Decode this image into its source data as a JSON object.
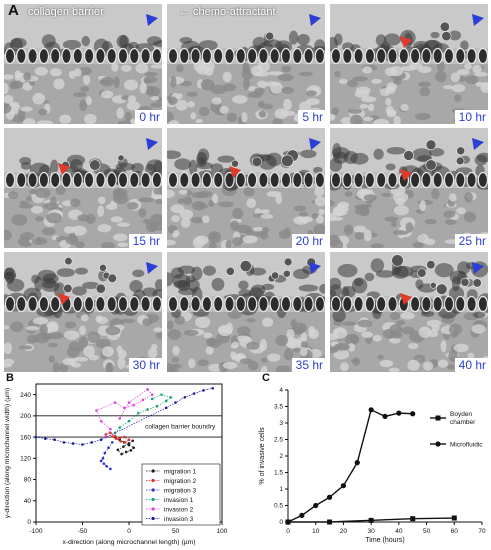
{
  "panel_a": {
    "label": "A",
    "annotations": {
      "collagen_barrier": "collagen barrier",
      "chemo_attractant": "chemo-attractant"
    },
    "frames": [
      {
        "time": "0 hr",
        "red_arrow": false
      },
      {
        "time": "5 hr",
        "red_arrow": false
      },
      {
        "time": "10 hr",
        "red_arrow": true
      },
      {
        "time": "15 hr",
        "red_arrow": true
      },
      {
        "time": "20 hr",
        "red_arrow": true
      },
      {
        "time": "25 hr",
        "red_arrow": true
      },
      {
        "time": "30 hr",
        "red_arrow": true
      },
      {
        "time": "35 hr",
        "red_arrow": false
      },
      {
        "time": "40 hr",
        "red_arrow": true
      }
    ],
    "colors": {
      "blue_arrow": "#2b3fd6",
      "red_arrow": "#e03a2a",
      "time_label": "#2b3fd6"
    }
  },
  "chart_data": [
    {
      "panel": "B",
      "type": "scatter",
      "xlabel": "x-direction (along microchannel length) (µm)",
      "ylabel": "y-direction (along microchannel width) (µm)",
      "xlim": [
        -100,
        100
      ],
      "ylim": [
        0,
        260
      ],
      "xticks": [
        "-100",
        "-50",
        "0",
        "50",
        "100"
      ],
      "yticks": [
        "0",
        "40",
        "80",
        "120",
        "160",
        "200",
        "240"
      ],
      "annotation": "collagen barrier boundry",
      "boundary_lines_y": [
        160,
        200
      ],
      "series": [
        {
          "name": "migration 1",
          "color": "#1a1a1a",
          "marker": "square",
          "x": [
            -15,
            -10,
            -5,
            0,
            5,
            2,
            -3,
            -8,
            -12,
            -6,
            0,
            4
          ],
          "y": [
            160,
            155,
            150,
            145,
            140,
            135,
            132,
            128,
            136,
            142,
            148,
            153
          ]
        },
        {
          "name": "migration 2",
          "color": "#e03030",
          "marker": "circle",
          "x": [
            -25,
            -20,
            -15,
            -10,
            -5,
            0,
            -4,
            -9,
            -14,
            -18
          ],
          "y": [
            165,
            168,
            162,
            158,
            160,
            155,
            150,
            152,
            157,
            161
          ]
        },
        {
          "name": "migration 3",
          "color": "#3030d0",
          "marker": "triangle",
          "x": [
            -18,
            -22,
            -26,
            -28,
            -30,
            -27,
            -24,
            -20
          ],
          "y": [
            150,
            140,
            130,
            120,
            115,
            110,
            105,
            100
          ]
        },
        {
          "name": "invasion 1",
          "color": "#20a080",
          "marker": "triangle",
          "x": [
            -15,
            -10,
            0,
            10,
            20,
            30,
            40,
            45,
            35,
            25
          ],
          "y": [
            168,
            178,
            190,
            205,
            212,
            218,
            228,
            235,
            240,
            232
          ]
        },
        {
          "name": "invasion 2",
          "color": "#e040e0",
          "marker": "diamond",
          "x": [
            -25,
            -20,
            -30,
            -35,
            -15,
            -5,
            5,
            15,
            25,
            20,
            0,
            -10
          ],
          "y": [
            160,
            175,
            190,
            210,
            225,
            215,
            220,
            230,
            240,
            250,
            225,
            195
          ]
        },
        {
          "name": "invasion 3",
          "color": "#1a1aa0",
          "marker": "triangle",
          "x": [
            -100,
            -90,
            -80,
            -70,
            -60,
            -50,
            -40,
            -30,
            40,
            50,
            60,
            70,
            80,
            90
          ],
          "y": [
            160,
            157,
            155,
            150,
            148,
            146,
            150,
            155,
            215,
            225,
            235,
            242,
            248,
            252
          ]
        }
      ]
    },
    {
      "panel": "C",
      "type": "line",
      "xlabel": "Time (hours)",
      "ylabel": "% of invasive cells",
      "xlim": [
        0,
        70
      ],
      "ylim": [
        0,
        4
      ],
      "xticks": [
        "0",
        "10",
        "20",
        "30",
        "40",
        "50",
        "60",
        "70"
      ],
      "yticks": [
        "0",
        "0.5",
        "1",
        "1.5",
        "2",
        "2.5",
        "3",
        "3.5",
        "4"
      ],
      "series": [
        {
          "name": "Boyden chamber",
          "marker": "square",
          "x": [
            0,
            15,
            30,
            45,
            60
          ],
          "y": [
            0,
            0,
            0.05,
            0.1,
            0.12
          ]
        },
        {
          "name": "Microfluidic",
          "marker": "circle",
          "x": [
            0,
            5,
            10,
            15,
            20,
            25,
            30,
            35,
            40,
            45
          ],
          "y": [
            0,
            0.2,
            0.5,
            0.75,
            1.1,
            1.8,
            3.4,
            3.2,
            3.3,
            3.28
          ]
        }
      ]
    }
  ]
}
